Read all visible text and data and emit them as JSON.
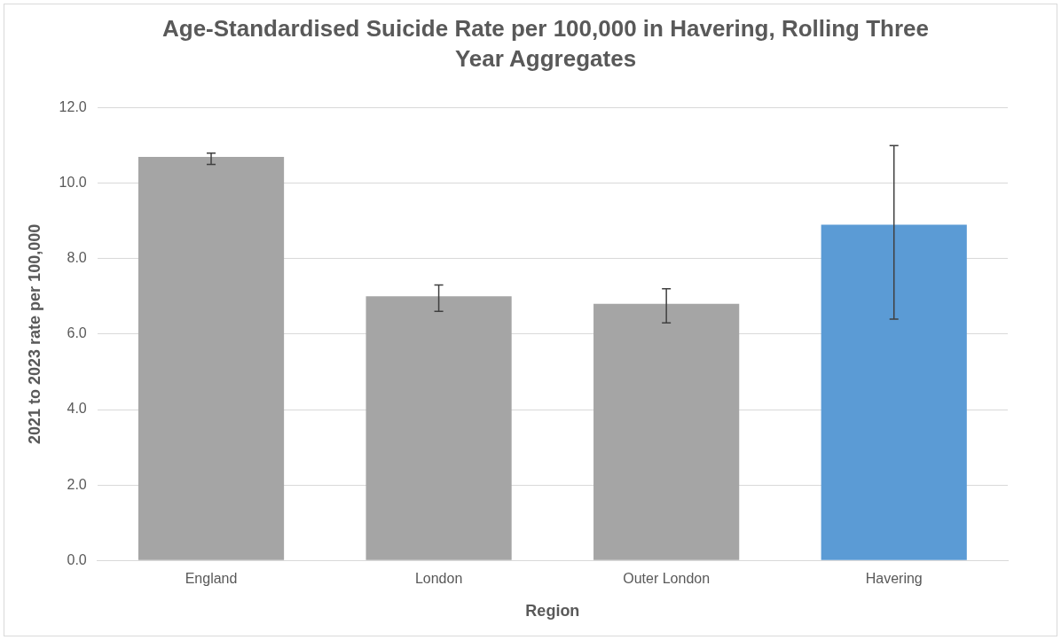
{
  "chart_data": {
    "type": "bar",
    "title": "Age-Standardised Suicide Rate per 100,000 in Havering, Rolling Three Year Aggregates",
    "xlabel": "Region",
    "ylabel": "2021 to 2023 rate per 100,000",
    "categories": [
      "England",
      "London",
      "Outer London",
      "Havering"
    ],
    "values": [
      10.7,
      7.0,
      6.8,
      8.9
    ],
    "colors": [
      "#a5a5a5",
      "#a5a5a5",
      "#a5a5a5",
      "#5b9bd5"
    ],
    "errors": [
      [
        10.5,
        10.8
      ],
      [
        6.6,
        7.3
      ],
      [
        6.3,
        7.2
      ],
      [
        6.4,
        11.0
      ]
    ],
    "ylim": [
      0,
      12
    ],
    "yticks": [
      {
        "value": 0,
        "label": "0.0"
      },
      {
        "value": 2,
        "label": "2.0"
      },
      {
        "value": 4,
        "label": "4.0"
      },
      {
        "value": 6,
        "label": "6.0"
      },
      {
        "value": 8,
        "label": "8.0"
      },
      {
        "value": 10,
        "label": "10.0"
      },
      {
        "value": 12,
        "label": "12.0"
      }
    ],
    "grid": "y",
    "legend": false
  }
}
